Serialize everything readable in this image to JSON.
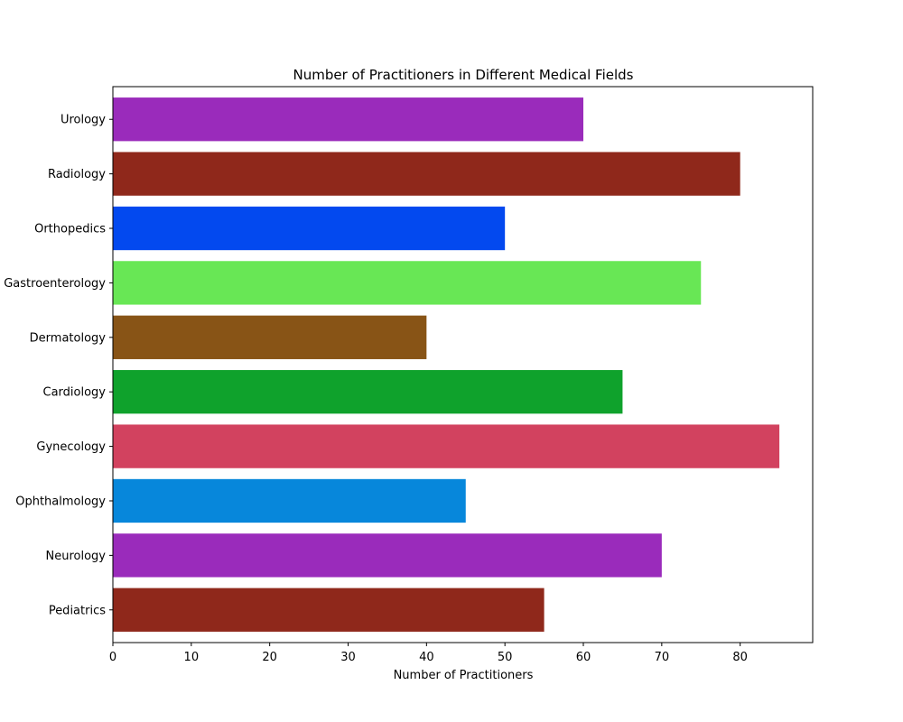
{
  "chart_data": {
    "type": "bar",
    "orientation": "horizontal",
    "title": "Number of Practitioners in Different Medical Fields",
    "xlabel": "Number of Practitioners",
    "ylabel": "",
    "categories": [
      "Pediatrics",
      "Neurology",
      "Ophthalmology",
      "Gynecology",
      "Cardiology",
      "Dermatology",
      "Gastroenterology",
      "Orthopedics",
      "Radiology",
      "Urology"
    ],
    "values": [
      55,
      70,
      45,
      85,
      65,
      40,
      75,
      50,
      80,
      60
    ],
    "colors": [
      "#8f281b",
      "#9a2bbb",
      "#0787db",
      "#d2425f",
      "#0fa22c",
      "#885416",
      "#68e755",
      "#0349ef",
      "#8f281b",
      "#9a2bbb"
    ],
    "xlim": [
      0,
      89.25
    ],
    "xticks": [
      0,
      10,
      20,
      30,
      40,
      50,
      60,
      70,
      80
    ],
    "grid": false,
    "legend": "none"
  }
}
